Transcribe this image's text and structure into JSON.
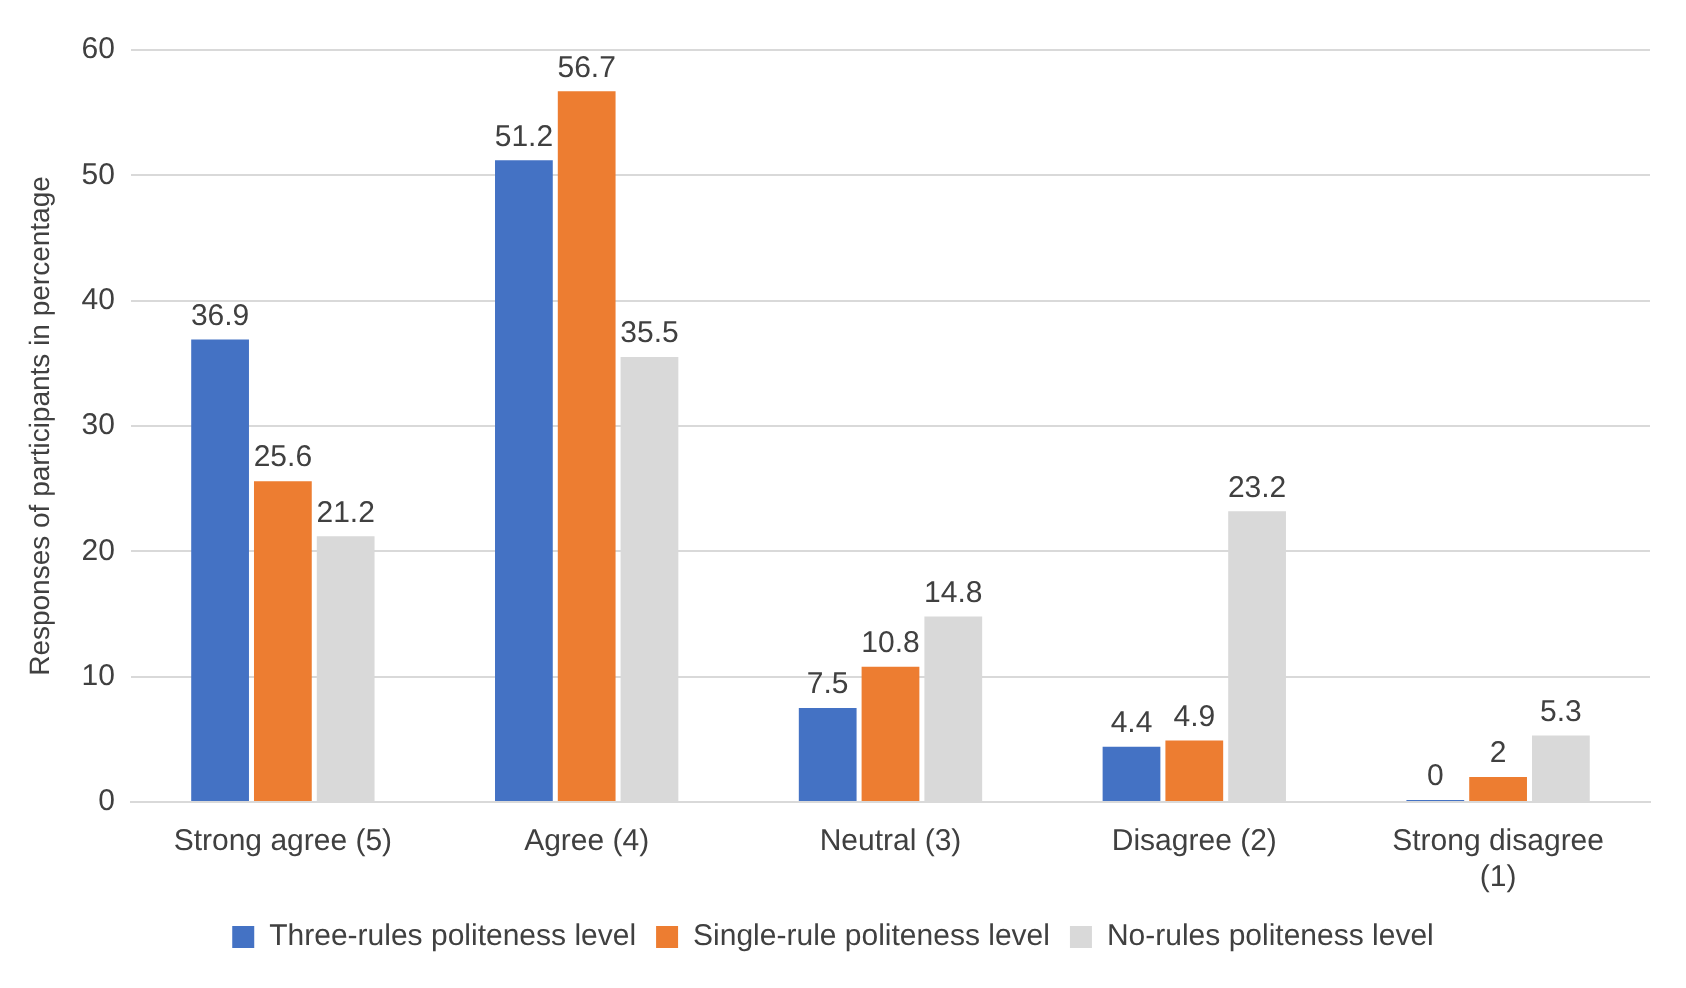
{
  "chart_data": {
    "type": "bar",
    "ylabel": "Responses of participants in percentage",
    "categories": [
      "Strong agree (5)",
      "Agree (4)",
      "Neutral (3)",
      "Disagree (2)",
      "Strong disagree (1)"
    ],
    "series": [
      {
        "name": "Three-rules politeness level",
        "color": "#4472c4",
        "values": [
          36.9,
          51.2,
          7.5,
          4.4,
          0
        ]
      },
      {
        "name": "Single-rule politeness level",
        "color": "#ed7d31",
        "values": [
          25.6,
          56.7,
          10.8,
          4.9,
          2
        ]
      },
      {
        "name": "No-rules politeness level",
        "color": "#d9d9d9",
        "values": [
          21.2,
          35.5,
          14.8,
          23.2,
          5.3
        ]
      }
    ],
    "ylim": [
      0,
      60
    ],
    "yticks": [
      0,
      10,
      20,
      30,
      40,
      50,
      60
    ],
    "grid": "y",
    "legend": "bottom",
    "data_labels": true
  }
}
